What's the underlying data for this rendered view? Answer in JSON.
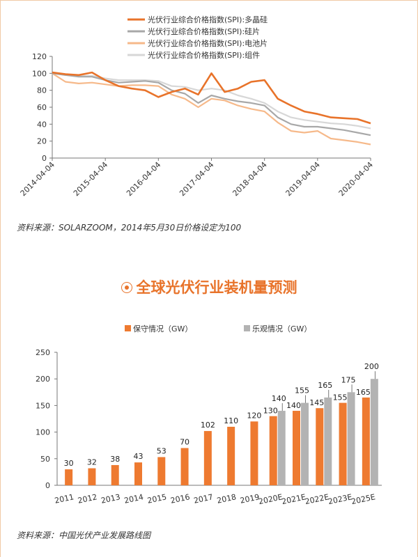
{
  "colors": {
    "polysilicon": "#e8732a",
    "wafer": "#a8a8a8",
    "cell": "#f6b98a",
    "module": "#d7d7d7",
    "conservative": "#ee7a30",
    "optimistic": "#b3b3b3",
    "accent": "#e8732a"
  },
  "section_title": "全球光伏行业装机量预测",
  "source1": "资料来源：SOLARZOOM，2014年5月30日价格设定为100",
  "source2": "资料来源：中国光伏产业发展路线图",
  "chart_data": [
    {
      "type": "line",
      "title": "",
      "x": [
        "2014-04-04",
        "2014-07-04",
        "2014-10-04",
        "2015-01-04",
        "2015-04-04",
        "2015-07-04",
        "2015-10-04",
        "2016-01-04",
        "2016-04-04",
        "2016-07-04",
        "2016-10-04",
        "2017-01-04",
        "2017-04-04",
        "2017-07-04",
        "2017-10-04",
        "2018-01-04",
        "2018-04-04",
        "2018-07-04",
        "2018-10-04",
        "2019-01-04",
        "2019-04-04",
        "2019-07-04",
        "2019-10-04",
        "2020-01-04",
        "2020-04-04"
      ],
      "series": [
        {
          "name": "光伏行业综合价格指数(SPI):多晶硅",
          "values": [
            101,
            99,
            98,
            101,
            92,
            85,
            82,
            80,
            72,
            78,
            82,
            75,
            100,
            78,
            82,
            90,
            92,
            70,
            62,
            55,
            52,
            48,
            47,
            46,
            41
          ]
        },
        {
          "name": "光伏行业综合价格指数(SPI):硅片",
          "values": [
            100,
            98,
            96,
            96,
            92,
            89,
            90,
            91,
            89,
            80,
            76,
            65,
            74,
            70,
            67,
            65,
            62,
            48,
            40,
            37,
            37,
            35,
            33,
            30,
            27
          ]
        },
        {
          "name": "光伏行业综合价格指数(SPI):电池片",
          "values": [
            100,
            90,
            88,
            89,
            87,
            85,
            86,
            86,
            85,
            75,
            70,
            60,
            70,
            68,
            62,
            58,
            55,
            42,
            32,
            30,
            32,
            23,
            21,
            19,
            16
          ]
        },
        {
          "name": "光伏行业综合价格指数(SPI):组件",
          "values": [
            100,
            98,
            97,
            97,
            94,
            92,
            92,
            92,
            91,
            85,
            84,
            80,
            82,
            80,
            74,
            70,
            65,
            55,
            48,
            45,
            43,
            41,
            40,
            38,
            35
          ]
        }
      ],
      "xticks": [
        "2014-04-04",
        "2015-04-04",
        "2016-04-04",
        "2017-04-04",
        "2018-04-04",
        "2019-04-04",
        "2020-04-04"
      ],
      "yticks": [
        "0",
        "20",
        "40",
        "60",
        "80",
        "100",
        "120"
      ],
      "ylim": [
        0,
        120
      ],
      "xlabel": "",
      "ylabel": ""
    },
    {
      "type": "bar",
      "title": "",
      "categories": [
        "2011",
        "2012",
        "2013",
        "2014",
        "2015",
        "2016",
        "2017",
        "2018",
        "2019",
        "2020E",
        "2021E",
        "2022E",
        "2023E",
        "2025E"
      ],
      "series": [
        {
          "name": "保守情况（GW）",
          "values": [
            30,
            32,
            38,
            43,
            53,
            70,
            102,
            110,
            120,
            130,
            140,
            145,
            155,
            165
          ]
        },
        {
          "name": "乐观情况（GW）",
          "values": [
            null,
            null,
            null,
            null,
            null,
            null,
            null,
            null,
            null,
            140,
            155,
            165,
            175,
            200
          ]
        }
      ],
      "yticks": [
        "0",
        "50",
        "100",
        "150",
        "200",
        "250"
      ],
      "ylim": [
        0,
        250
      ],
      "xlabel": "",
      "ylabel": ""
    }
  ]
}
